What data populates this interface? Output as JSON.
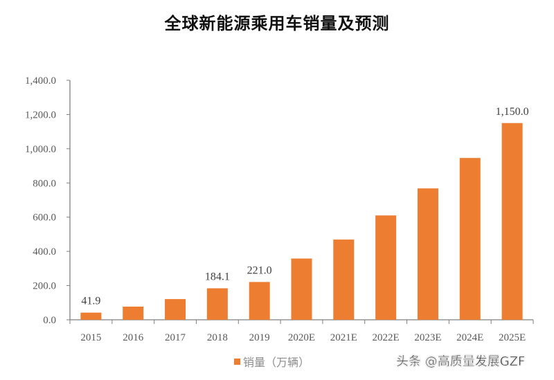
{
  "chart_data": {
    "type": "bar",
    "title": "全球新能源乘用车销量及预测",
    "xlabel": "",
    "ylabel": "",
    "ylim": [
      0,
      1400
    ],
    "yticks": [
      "0.0",
      "200.0",
      "400.0",
      "600.0",
      "800.0",
      "1,000.0",
      "1,200.0",
      "1,400.0"
    ],
    "categories": [
      "2015",
      "2016",
      "2017",
      "2018",
      "2019",
      "2020E",
      "2021E",
      "2022E",
      "2023E",
      "2024E",
      "2025E"
    ],
    "series": [
      {
        "name": "销量（万辆）",
        "color": "#ED7D31",
        "values": [
          41.9,
          77,
          121,
          184.1,
          221.0,
          358,
          469,
          610,
          768,
          946,
          1150.0
        ]
      }
    ],
    "data_labels": [
      {
        "index": 0,
        "text": "41.9"
      },
      {
        "index": 3,
        "text": "184.1"
      },
      {
        "index": 4,
        "text": "221.0"
      },
      {
        "index": 10,
        "text": "1,150.0"
      }
    ],
    "grid": false,
    "legend_position": "bottom"
  },
  "title": "全球新能源乘用车销量及预测",
  "legend": {
    "label": "销量（万辆）",
    "color": "#ED7D31"
  },
  "watermark": "头条 @高质量发展GZF",
  "colors": {
    "bar": "#ED7D31",
    "axis": "#7f7f7f",
    "text": "#595959"
  }
}
